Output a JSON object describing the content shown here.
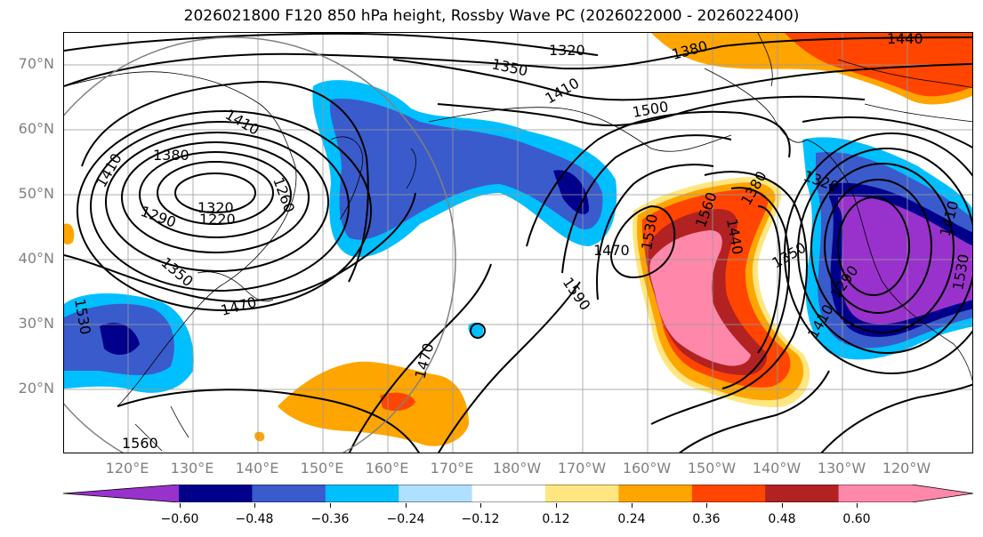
{
  "title": "2026021800 F120 850 hPa height, Rossby Wave PC (2026022000 - 2026022400)",
  "lat_labels": [
    "70°N",
    "60°N",
    "50°N",
    "40°N",
    "30°N",
    "20°N"
  ],
  "lon_labels": [
    "120°E",
    "130°E",
    "140°E",
    "150°E",
    "160°E",
    "170°E",
    "180°W",
    "170°W",
    "160°W",
    "150°W",
    "140°W",
    "130°W",
    "120°W"
  ],
  "contour_labels": [
    "1320",
    "1350",
    "1380",
    "1410",
    "1440",
    "1410",
    "1500",
    "1410",
    "1380",
    "1290",
    "1320",
    "1220",
    "1260",
    "1350",
    "1470",
    "1530",
    "1470",
    "1470",
    "1590",
    "1530",
    "1560",
    "1440",
    "1380",
    "1320",
    "1350",
    "1290",
    "1410",
    "1410",
    "1530",
    "1560",
    "1290"
  ],
  "colorbar": {
    "ticks": [
      "−0.60",
      "−0.48",
      "−0.36",
      "−0.24",
      "−0.12",
      "0.12",
      "0.24",
      "0.36",
      "0.48",
      "0.60"
    ],
    "colors": [
      "#9932cc",
      "#00008b",
      "#3a5bcc",
      "#00bfff",
      "#b0e0ff",
      "#ffffff",
      "#ffe680",
      "#ffa500",
      "#ff4500",
      "#b22222",
      "#ff88aa",
      "#ff88aa"
    ]
  }
}
